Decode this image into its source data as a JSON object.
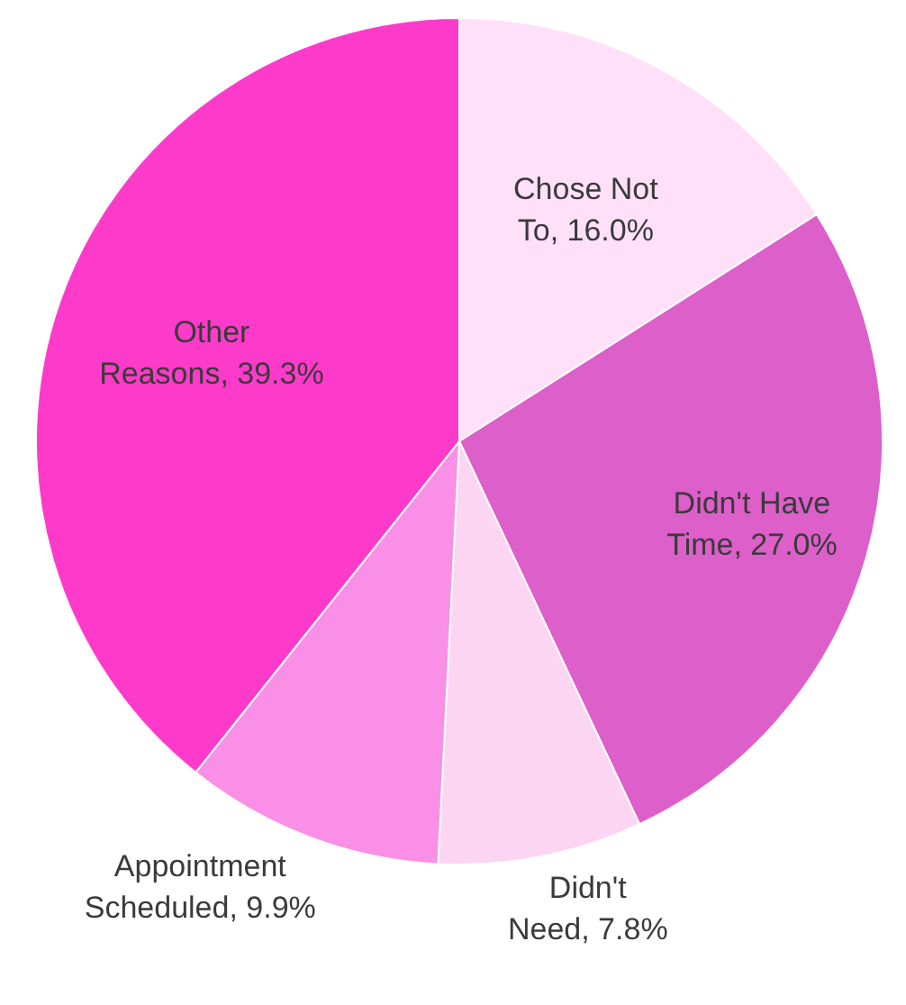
{
  "chart_data": {
    "type": "pie",
    "categories": [
      "Chose Not To",
      "Didn't Have Time",
      "Didn't Need",
      "Appointment Scheduled",
      "Other Reasons"
    ],
    "values": [
      16.0,
      27.0,
      7.8,
      9.9,
      39.3
    ],
    "value_labels": [
      "16.0%",
      "27.0%",
      "7.8%",
      "9.9%",
      "39.3%"
    ],
    "colors": [
      "#ffe0f8",
      "#dd5fc9",
      "#fcd5f3",
      "#f98fe6",
      "#fe3acb"
    ],
    "legend": false
  }
}
